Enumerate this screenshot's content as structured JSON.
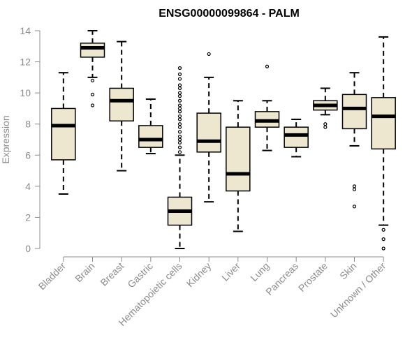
{
  "chart_data": {
    "type": "boxplot",
    "title": "ENSG00000099864 - PALM",
    "xlabel": "",
    "ylabel": "Expression",
    "ylim": [
      0,
      14
    ],
    "yticks": [
      0,
      2,
      4,
      6,
      8,
      10,
      12,
      14
    ],
    "yticklabels": [
      "0",
      "2",
      "4",
      "6",
      "8",
      "10",
      "12",
      "14"
    ],
    "grid": false,
    "colors": {
      "box_fill": "#ede7cf",
      "stroke": "#000000",
      "axis": "#8c8c8c"
    },
    "categories": [
      "Bladder",
      "Brain",
      "Breast",
      "Gastric",
      "Hematopoietic cells",
      "Kidney",
      "Liver",
      "Lung",
      "Pancreas",
      "Prostate",
      "Skin",
      "Unknown / Other"
    ],
    "boxes": [
      {
        "name": "Bladder",
        "whisker_low": 3.5,
        "q1": 5.7,
        "median": 7.9,
        "q3": 9.0,
        "whisker_high": 11.3,
        "outliers": []
      },
      {
        "name": "Brain",
        "whisker_low": 11.0,
        "q1": 12.3,
        "median": 12.9,
        "q3": 13.2,
        "whisker_high": 14.0,
        "outliers": [
          10.8,
          9.9,
          9.2
        ]
      },
      {
        "name": "Breast",
        "whisker_low": 5.0,
        "q1": 8.2,
        "median": 9.5,
        "q3": 10.3,
        "whisker_high": 13.3,
        "outliers": []
      },
      {
        "name": "Gastric",
        "whisker_low": 6.1,
        "q1": 6.5,
        "median": 7.0,
        "q3": 7.9,
        "whisker_high": 9.6,
        "outliers": []
      },
      {
        "name": "Hematopoietic cells",
        "whisker_low": 0.0,
        "q1": 1.5,
        "median": 2.4,
        "q3": 3.3,
        "whisker_high": 6.0,
        "outliers": [
          6.2,
          6.5,
          6.8,
          7.0,
          7.2,
          7.5,
          7.8,
          8.0,
          8.3,
          8.5,
          8.8,
          9.0,
          9.2,
          9.5,
          9.8,
          10.0,
          10.3,
          10.5,
          10.9,
          11.2,
          11.6
        ]
      },
      {
        "name": "Kidney",
        "whisker_low": 3.0,
        "q1": 6.2,
        "median": 6.9,
        "q3": 8.7,
        "whisker_high": 11.0,
        "outliers": [
          12.5
        ]
      },
      {
        "name": "Liver",
        "whisker_low": 1.1,
        "q1": 3.7,
        "median": 4.8,
        "q3": 7.8,
        "whisker_high": 9.5,
        "outliers": []
      },
      {
        "name": "Lung",
        "whisker_low": 6.3,
        "q1": 7.8,
        "median": 8.2,
        "q3": 8.8,
        "whisker_high": 9.5,
        "outliers": [
          11.7
        ]
      },
      {
        "name": "Pancreas",
        "whisker_low": 5.9,
        "q1": 6.5,
        "median": 7.3,
        "q3": 7.8,
        "whisker_high": 8.3,
        "outliers": []
      },
      {
        "name": "Prostate",
        "whisker_low": 8.6,
        "q1": 8.9,
        "median": 9.2,
        "q3": 9.5,
        "whisker_high": 10.3,
        "outliers": [
          8.0,
          7.8
        ]
      },
      {
        "name": "Skin",
        "whisker_low": 6.6,
        "q1": 7.7,
        "median": 9.0,
        "q3": 9.9,
        "whisker_high": 11.3,
        "outliers": [
          4.0,
          3.8,
          2.7
        ]
      },
      {
        "name": "Unknown / Other",
        "whisker_low": 1.5,
        "q1": 6.4,
        "median": 8.5,
        "q3": 9.7,
        "whisker_high": 13.6,
        "outliers": [
          1.2,
          0.6,
          0.0
        ]
      }
    ]
  }
}
